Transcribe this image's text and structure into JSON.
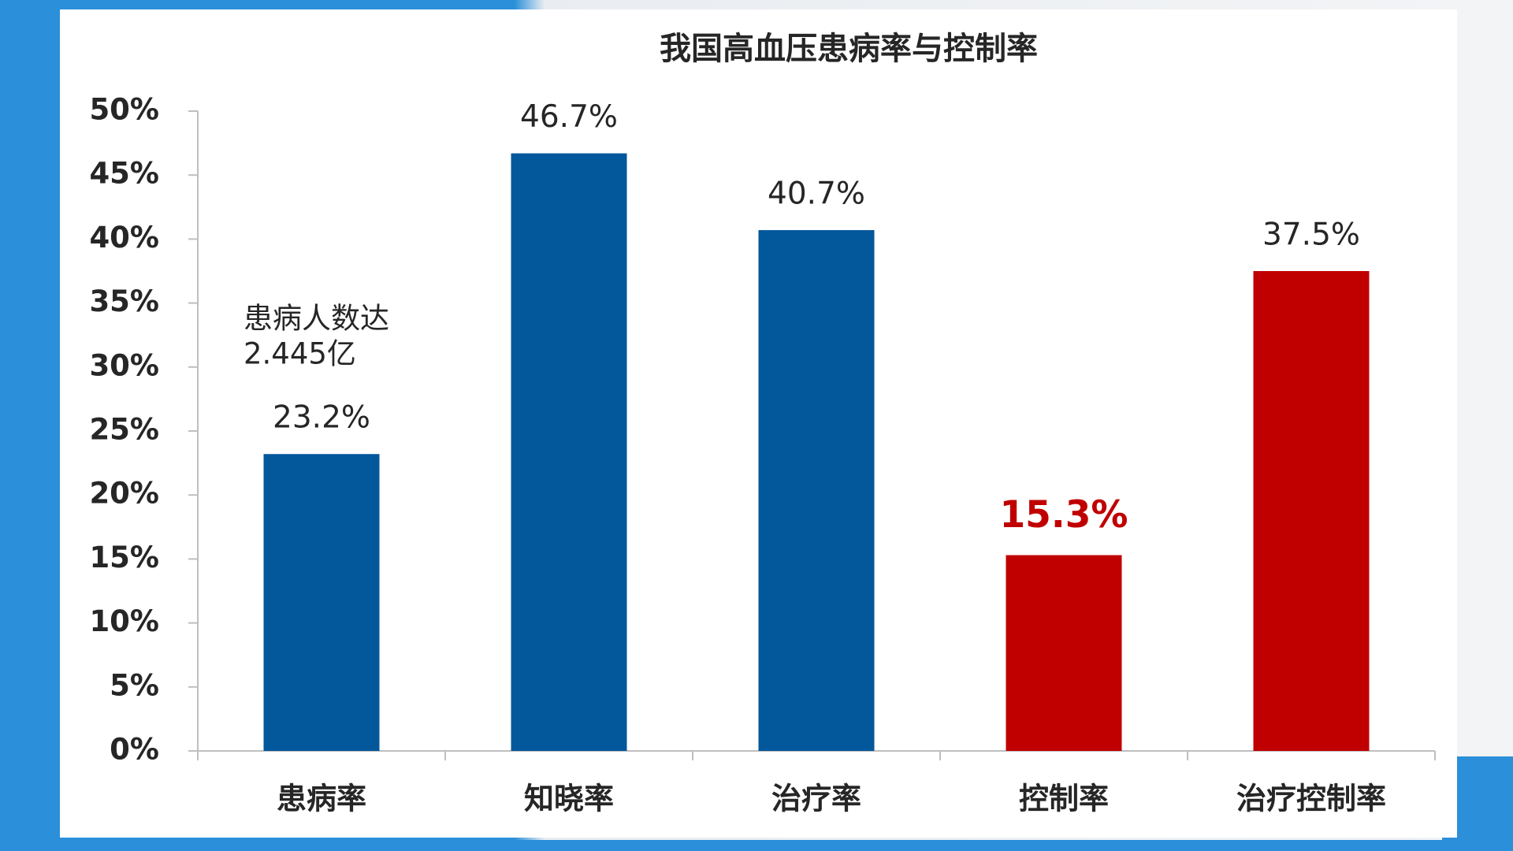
{
  "chart_data": {
    "type": "bar",
    "title": "我国高血压患病率与控制率",
    "categories": [
      "患病率",
      "知晓率",
      "治疗率",
      "控制率",
      "治疗控制率"
    ],
    "values": [
      23.2,
      46.7,
      40.7,
      15.3,
      37.5
    ],
    "value_labels": [
      "23.2%",
      "46.7%",
      "40.7%",
      "15.3%",
      "37.5%"
    ],
    "colors": [
      "#03579b",
      "#03579b",
      "#03579b",
      "#c00000",
      "#c00000"
    ],
    "highlight": 3,
    "annotation": [
      "患病人数达",
      "2.445亿"
    ],
    "ylim": [
      0,
      50
    ],
    "yticks": [
      {
        "value": 0,
        "label": "0%"
      },
      {
        "value": 5,
        "label": "5%"
      },
      {
        "value": 10,
        "label": "10%"
      },
      {
        "value": 15,
        "label": "15%"
      },
      {
        "value": 20,
        "label": "20%"
      },
      {
        "value": 25,
        "label": "25%"
      },
      {
        "value": 30,
        "label": "30%"
      },
      {
        "value": 35,
        "label": "35%"
      },
      {
        "value": 40,
        "label": "40%"
      },
      {
        "value": 45,
        "label": "45%"
      },
      {
        "value": 50,
        "label": "50%"
      }
    ]
  }
}
